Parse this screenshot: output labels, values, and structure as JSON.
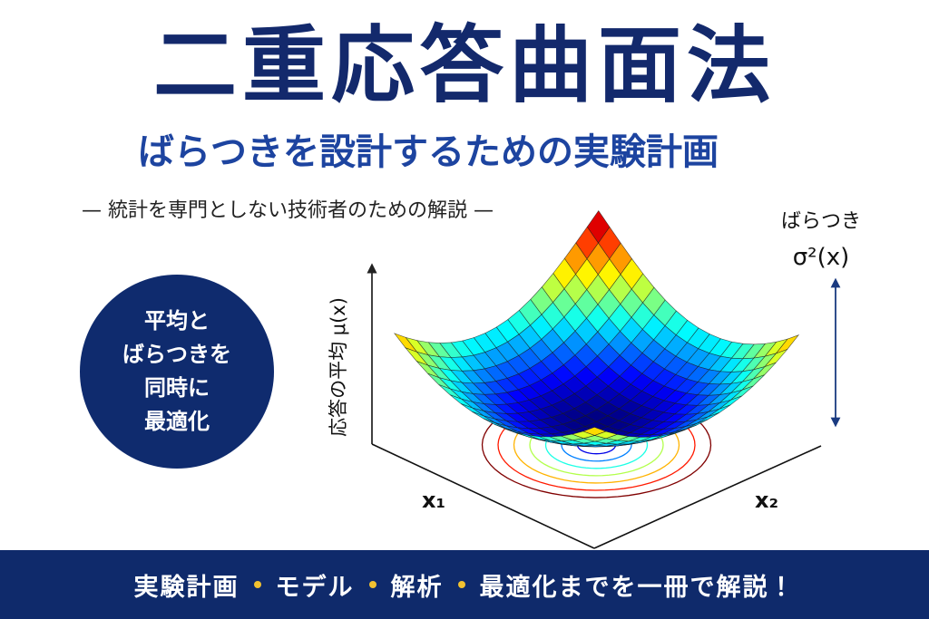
{
  "header": {
    "title": "二重応答曲面法",
    "subtitle": "ばらつきを設計するための実験計画",
    "tagline": "— 統計を専門としない技術者のための解説 —"
  },
  "badge": {
    "lines": [
      "平均と",
      "ばらつきを",
      "同時に",
      "最適化"
    ]
  },
  "figure": {
    "z_axis_label": "応答の平均 μ(x)",
    "x1_label": "x₁",
    "x2_label": "x₂",
    "variance_label": "ばらつき",
    "variance_symbol": "σ²(x)"
  },
  "footer": {
    "items": [
      "実験計画",
      "モデル",
      "解析",
      "最適化までを一冊で解説！"
    ]
  }
}
